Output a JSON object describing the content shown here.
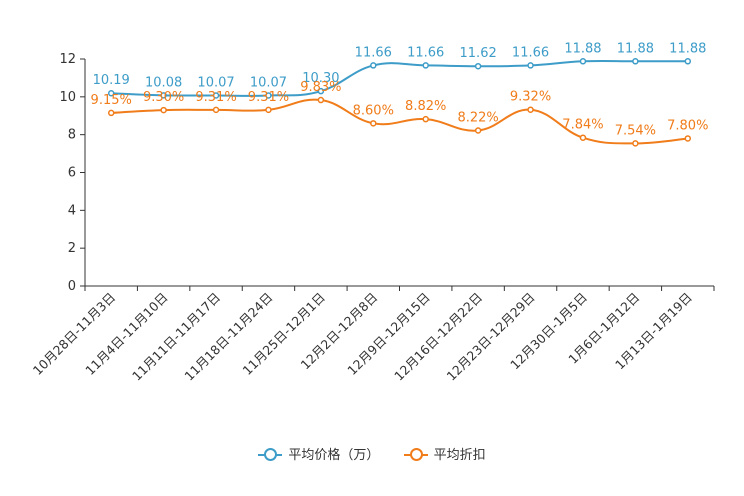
{
  "chart_data": {
    "type": "line",
    "categories": [
      "10月28日-11月3日",
      "11月4日-11月10日",
      "11月11日-11月17日",
      "11月18日-11月24日",
      "11月25日-12月1日",
      "12月2日-12月8日",
      "12月9日-12月15日",
      "12月16日-12月22日",
      "12月23日-12月29日",
      "12月30日-1月5日",
      "1月6日-1月12日",
      "1月13日-1月19日"
    ],
    "series": [
      {
        "name": "平均价格（万）",
        "color": "#3d9cc8",
        "values": [
          10.19,
          10.08,
          10.07,
          10.07,
          10.3,
          11.66,
          11.66,
          11.62,
          11.66,
          11.88,
          11.88,
          11.88
        ],
        "labels": [
          "10.19",
          "10.08",
          "10.07",
          "10.07",
          "10.30",
          "11.66",
          "11.66",
          "11.62",
          "11.66",
          "11.88",
          "11.88",
          "11.88"
        ]
      },
      {
        "name": "平均折扣",
        "color": "#f07c1a",
        "values": [
          9.15,
          9.3,
          9.31,
          9.31,
          9.83,
          8.6,
          8.82,
          8.22,
          9.32,
          7.84,
          7.54,
          7.8
        ],
        "labels": [
          "9.15%",
          "9.30%",
          "9.31%",
          "9.31%",
          "9.83%",
          "8.60%",
          "8.82%",
          "8.22%",
          "9.32%",
          "7.84%",
          "7.54%",
          "7.80%"
        ]
      }
    ],
    "yticks": [
      "0",
      "2",
      "4",
      "6",
      "8",
      "10",
      "12"
    ],
    "ylim": [
      0,
      12
    ],
    "legend_position": "bottom-center"
  }
}
